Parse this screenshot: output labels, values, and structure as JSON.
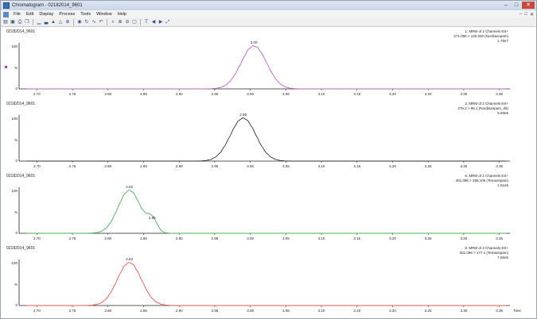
{
  "window": {
    "title": "Chromatogram - 02182014_9601",
    "controls": {
      "minimize": "–",
      "maximize": "□",
      "close": "✕"
    }
  },
  "menu": [
    "File",
    "Edit",
    "Display",
    "Process",
    "Tools",
    "Window",
    "Help"
  ],
  "mdi_controls": [
    "–",
    "□",
    "✕"
  ],
  "toolbar": {
    "icons": [
      "open-icon",
      "save-icon",
      "print-icon",
      "copy-icon",
      "chart-icon",
      "chart-add-icon",
      "peak-icon",
      "integrate-icon",
      "peak-label-icon",
      "globe-icon",
      "refresh-icon",
      "smooth-icon",
      "undo-icon",
      "zoom-icon",
      "zoom-in-icon",
      "zoom-out-icon",
      "zoom-fit-icon",
      "text-icon",
      "nav-back-icon",
      "nav-forward-icon",
      "expand-icon"
    ],
    "glyphs": [
      "▤",
      "▣",
      "⎙",
      "❐",
      "▁",
      "▃",
      "▲",
      "△",
      "⊕",
      "◉",
      "↻",
      "∿",
      "↶",
      "⌕",
      "⊕",
      "⊖",
      "▢",
      "T",
      "◀",
      "▶",
      "⤢"
    ]
  },
  "chart_data": [
    {
      "type": "line",
      "sample": "02182014_9601",
      "header": [
        "1: MRM of 2 Channels ES+",
        "271.096 > 140.020 (Nordiazepam)",
        "1.76e7"
      ],
      "color": "#c060c0",
      "ylabel": "%",
      "ymax_label": "100",
      "ymin_label": "0",
      "peak_labels": [
        {
          "x": 3.0,
          "label": "3.00"
        }
      ],
      "peaks": [
        {
          "center": 3.005,
          "height": 100,
          "width": 0.018
        }
      ],
      "xlim": [
        2.675,
        3.365
      ],
      "ticks": [
        "2.70",
        "2.75",
        "2.80",
        "2.85",
        "2.90",
        "2.95",
        "3.00",
        "3.05",
        "3.10",
        "3.15",
        "3.20",
        "3.25",
        "3.30",
        "3.35"
      ]
    },
    {
      "type": "line",
      "sample": "02182014_9601",
      "header": [
        "2: MRM of 2 Channels ES+",
        "276.2 > 96.1 (Nordiazepam_d5)",
        "5.60e5"
      ],
      "color": "#303030",
      "ylabel": "%",
      "ymax_label": "100",
      "ymin_label": "0",
      "peak_labels": [
        {
          "x": 2.99,
          "label": "2.99"
        }
      ],
      "peaks": [
        {
          "center": 2.99,
          "height": 100,
          "width": 0.018
        }
      ],
      "xlim": [
        2.675,
        3.365
      ],
      "ticks": [
        "2.70",
        "2.75",
        "2.80",
        "2.85",
        "2.90",
        "2.95",
        "3.00",
        "3.05",
        "3.10",
        "3.15",
        "3.20",
        "3.25",
        "3.30",
        "3.35"
      ]
    },
    {
      "type": "line",
      "sample": "02182014_9601",
      "header": [
        "6: MRM of 2 Channels ES+",
        "301.096 > 255.105 (Temazepam)",
        "1.61e6"
      ],
      "color": "#4caf50",
      "ylabel": "%",
      "ymax_label": "100",
      "ymin_label": "0",
      "peak_labels": [
        {
          "x": 2.83,
          "label": "2.83"
        },
        {
          "x": 2.86,
          "label": "2.86"
        }
      ],
      "peaks": [
        {
          "center": 2.83,
          "height": 100,
          "width": 0.016
        },
        {
          "center": 2.862,
          "height": 28,
          "width": 0.007
        }
      ],
      "xlim": [
        2.675,
        3.365
      ],
      "ticks": [
        "2.70",
        "2.75",
        "2.80",
        "2.85",
        "2.90",
        "2.95",
        "3.00",
        "3.05",
        "3.10",
        "3.15",
        "3.20",
        "3.25",
        "3.30",
        "3.35"
      ]
    },
    {
      "type": "line",
      "sample": "02182014_9601",
      "header": [
        "8: MRM of 2 Channels ES+",
        "301.096 > 177.1 (Temazepam)",
        "7.65e5"
      ],
      "color": "#e05a4a",
      "ylabel": "%",
      "ymax_label": "100",
      "ymin_label": "0",
      "peak_labels": [
        {
          "x": 2.83,
          "label": "2.83"
        }
      ],
      "peaks": [
        {
          "center": 2.83,
          "height": 100,
          "width": 0.017
        }
      ],
      "xlim": [
        2.675,
        3.365
      ],
      "ticks": [
        "2.70",
        "2.75",
        "2.80",
        "2.85",
        "2.90",
        "2.95",
        "3.00",
        "3.05",
        "3.10",
        "3.15",
        "3.20",
        "3.25",
        "3.30",
        "3.35"
      ],
      "xlabel": "Time"
    }
  ]
}
